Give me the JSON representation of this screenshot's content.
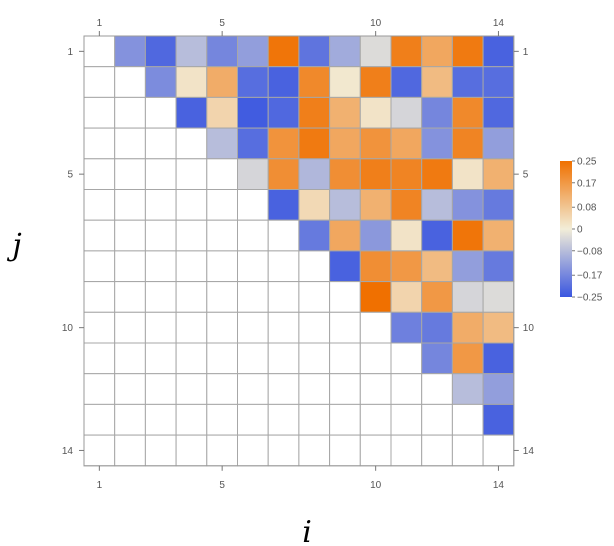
{
  "chart_data": {
    "type": "heatmap",
    "xlabel": "i",
    "ylabel": "j",
    "n": 14,
    "x_ticks": [
      1,
      5,
      10,
      14
    ],
    "y_ticks": [
      1,
      5,
      10,
      14
    ],
    "color_range": [
      -0.25,
      0.25
    ],
    "colorbar_ticks": [
      "0.25",
      "0.17",
      "0.08",
      "0",
      "−0.08",
      "−0.17",
      "−0.25"
    ],
    "colorbar_tick_values": [
      0.25,
      0.17,
      0.08,
      0,
      -0.08,
      -0.17,
      -0.25
    ],
    "colors": {
      "positive": "#f07000",
      "zero": "#f2edd8",
      "negative": "#3a56e0",
      "empty": "#ffffff",
      "grid": "#a7a7a7"
    },
    "matrix": [
      [
        null,
        -0.15,
        -0.22,
        -0.08,
        -0.17,
        -0.13,
        0.24,
        -0.2,
        -0.11,
        -0.03,
        0.22,
        0.14,
        0.23,
        -0.23
      ],
      [
        null,
        null,
        -0.16,
        0.02,
        0.13,
        -0.21,
        -0.23,
        0.2,
        0.01,
        0.22,
        -0.22,
        0.1,
        -0.21,
        -0.21
      ],
      [
        null,
        null,
        null,
        -0.23,
        0.05,
        -0.24,
        -0.22,
        0.22,
        0.12,
        0.02,
        -0.04,
        -0.17,
        0.2,
        -0.22
      ],
      [
        null,
        null,
        null,
        null,
        -0.08,
        -0.21,
        0.18,
        0.23,
        0.14,
        0.18,
        0.14,
        -0.15,
        0.21,
        -0.13
      ],
      [
        null,
        null,
        null,
        null,
        null,
        -0.04,
        0.19,
        -0.09,
        0.19,
        0.22,
        0.21,
        0.23,
        0.02,
        0.12
      ],
      [
        null,
        null,
        null,
        null,
        null,
        null,
        -0.23,
        0.04,
        -0.08,
        0.12,
        0.21,
        -0.08,
        -0.15,
        -0.19
      ],
      [
        null,
        null,
        null,
        null,
        null,
        null,
        null,
        -0.19,
        0.14,
        -0.14,
        0.02,
        -0.23,
        0.24,
        0.12
      ],
      [
        null,
        null,
        null,
        null,
        null,
        null,
        null,
        null,
        -0.23,
        0.19,
        0.17,
        0.1,
        -0.13,
        -0.19
      ],
      [
        null,
        null,
        null,
        null,
        null,
        null,
        null,
        null,
        null,
        0.25,
        0.05,
        0.17,
        -0.04,
        -0.03
      ],
      [
        null,
        null,
        null,
        null,
        null,
        null,
        null,
        null,
        null,
        null,
        -0.18,
        -0.19,
        0.13,
        0.1
      ],
      [
        null,
        null,
        null,
        null,
        null,
        null,
        null,
        null,
        null,
        null,
        null,
        -0.17,
        0.17,
        -0.23
      ],
      [
        null,
        null,
        null,
        null,
        null,
        null,
        null,
        null,
        null,
        null,
        null,
        null,
        -0.08,
        -0.13
      ],
      [
        null,
        null,
        null,
        null,
        null,
        null,
        null,
        null,
        null,
        null,
        null,
        null,
        null,
        -0.23
      ],
      [
        null,
        null,
        null,
        null,
        null,
        null,
        null,
        null,
        null,
        null,
        null,
        null,
        null,
        null
      ]
    ]
  }
}
